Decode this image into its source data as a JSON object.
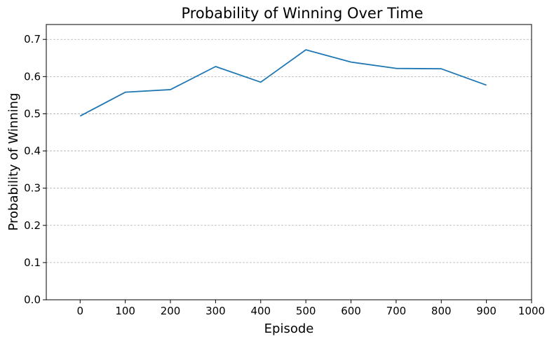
{
  "chart_data": {
    "type": "line",
    "title": "Probability of Winning Over Time",
    "xlabel": "Episode",
    "ylabel": "Probability of Winning",
    "xlim": [
      -75,
      1000
    ],
    "ylim": [
      0,
      0.74
    ],
    "xticks": [
      0,
      100,
      200,
      300,
      400,
      500,
      600,
      700,
      800,
      900,
      1000
    ],
    "yticks": [
      0.0,
      0.1,
      0.2,
      0.3,
      0.4,
      0.5,
      0.6,
      0.7
    ],
    "ytick_labels": [
      "0.0",
      "0.1",
      "0.2",
      "0.3",
      "0.4",
      "0.5",
      "0.6",
      "0.7"
    ],
    "grid": "horizontal dashed",
    "series": [
      {
        "color": "#1f77b4",
        "x": [
          0,
          100,
          200,
          300,
          400,
          500,
          600,
          700,
          800,
          900
        ],
        "values": [
          0.494,
          0.558,
          0.565,
          0.627,
          0.585,
          0.672,
          0.639,
          0.622,
          0.621,
          0.577
        ]
      }
    ]
  }
}
